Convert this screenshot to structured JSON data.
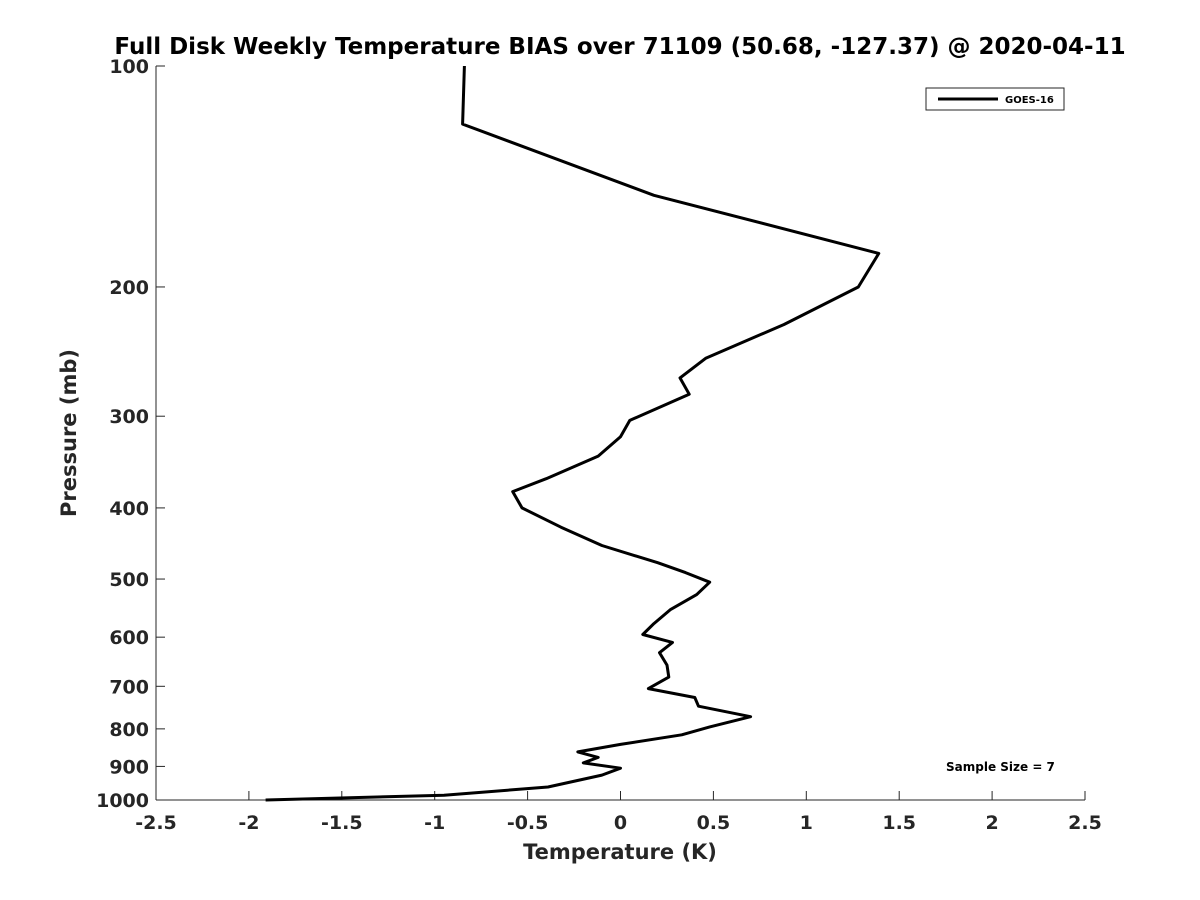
{
  "chart_data": {
    "type": "line",
    "title": "Full Disk Weekly Temperature BIAS over 71109 (50.68, -127.37) @ 2020-04-11",
    "xlabel": "Temperature (K)",
    "ylabel": "Pressure (mb)",
    "xlim": [
      -2.5,
      2.5
    ],
    "ylim": [
      100,
      1000
    ],
    "y_scale": "log",
    "y_reversed": true,
    "grid": false,
    "x_ticks": [
      -2.5,
      -2,
      -1.5,
      -1,
      -0.5,
      0,
      0.5,
      1,
      1.5,
      2,
      2.5
    ],
    "x_tick_labels": [
      "-2.5",
      "-2",
      "-1.5",
      "-1",
      "-0.5",
      "0",
      "0.5",
      "1",
      "1.5",
      "2",
      "2.5"
    ],
    "y_ticks": [
      100,
      200,
      300,
      400,
      500,
      600,
      700,
      800,
      900,
      1000
    ],
    "y_tick_labels": [
      "100",
      "200",
      "300",
      "400",
      "500",
      "600",
      "700",
      "800",
      "900",
      "1000"
    ],
    "legend": {
      "placement": "top-right",
      "entries": [
        "GOES-16"
      ]
    },
    "annotation": "Sample Size = 7",
    "series": [
      {
        "name": "GOES-16",
        "color": "#000000",
        "points": [
          {
            "x": -0.84,
            "y": 100
          },
          {
            "x": -0.85,
            "y": 120
          },
          {
            "x": 0.18,
            "y": 150
          },
          {
            "x": 1.39,
            "y": 180
          },
          {
            "x": 1.28,
            "y": 200
          },
          {
            "x": 0.88,
            "y": 225
          },
          {
            "x": 0.46,
            "y": 250
          },
          {
            "x": 0.32,
            "y": 266
          },
          {
            "x": 0.37,
            "y": 280
          },
          {
            "x": 0.05,
            "y": 304
          },
          {
            "x": 0.0,
            "y": 320
          },
          {
            "x": -0.12,
            "y": 340
          },
          {
            "x": -0.4,
            "y": 365
          },
          {
            "x": -0.58,
            "y": 380
          },
          {
            "x": -0.53,
            "y": 400
          },
          {
            "x": -0.32,
            "y": 425
          },
          {
            "x": -0.1,
            "y": 450
          },
          {
            "x": 0.2,
            "y": 475
          },
          {
            "x": 0.35,
            "y": 490
          },
          {
            "x": 0.48,
            "y": 505
          },
          {
            "x": 0.41,
            "y": 525
          },
          {
            "x": 0.27,
            "y": 550
          },
          {
            "x": 0.18,
            "y": 575
          },
          {
            "x": 0.12,
            "y": 595
          },
          {
            "x": 0.28,
            "y": 610
          },
          {
            "x": 0.21,
            "y": 630
          },
          {
            "x": 0.25,
            "y": 655
          },
          {
            "x": 0.26,
            "y": 680
          },
          {
            "x": 0.15,
            "y": 705
          },
          {
            "x": 0.4,
            "y": 725
          },
          {
            "x": 0.42,
            "y": 745
          },
          {
            "x": 0.7,
            "y": 770
          },
          {
            "x": 0.48,
            "y": 795
          },
          {
            "x": 0.33,
            "y": 815
          },
          {
            "x": 0.0,
            "y": 840
          },
          {
            "x": -0.23,
            "y": 860
          },
          {
            "x": -0.12,
            "y": 875
          },
          {
            "x": -0.2,
            "y": 890
          },
          {
            "x": 0.0,
            "y": 905
          },
          {
            "x": -0.1,
            "y": 925
          },
          {
            "x": -0.39,
            "y": 960
          },
          {
            "x": -0.95,
            "y": 985
          },
          {
            "x": -1.91,
            "y": 1000
          }
        ]
      }
    ]
  }
}
